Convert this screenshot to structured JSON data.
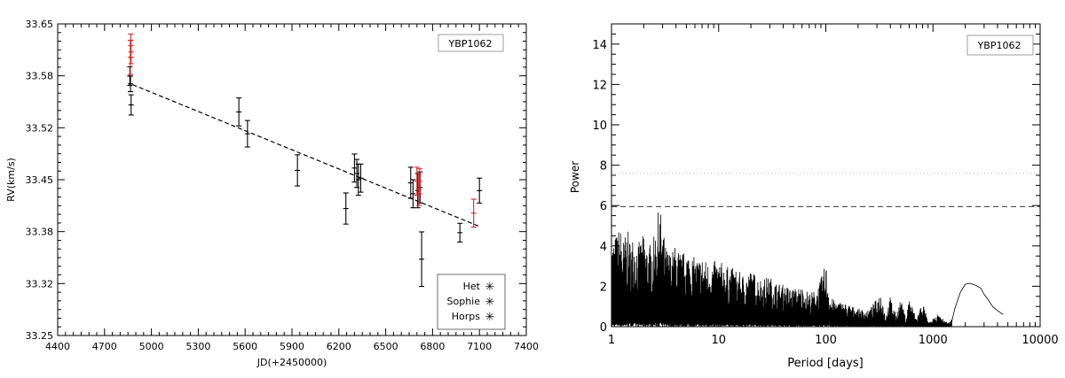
{
  "chart_data": [
    {
      "type": "scatter",
      "title": "",
      "xlabel": "JD(+2450000)",
      "ylabel": "RV(km/s)",
      "xlim": [
        4400,
        7400
      ],
      "ylim": [
        33.25,
        33.65
      ],
      "x_ticks": [
        "4400",
        "4700",
        "5000",
        "5300",
        "5600",
        "5900",
        "6200",
        "6500",
        "6800",
        "7100",
        "7400"
      ],
      "y_ticks": [
        "33.25",
        "33.32",
        "33.38",
        "33.45",
        "33.52",
        "33.58",
        "33.65"
      ],
      "grid": false,
      "annotation": "YBP1062",
      "annotation_position": "top-right",
      "legend_position": "bottom-right",
      "legend": [
        {
          "name": "Het",
          "color": "#33dd33"
        },
        {
          "name": "Sophie",
          "color": "#dd2222"
        },
        {
          "name": "Horps",
          "color": "#000000"
        }
      ],
      "trend": {
        "style": "dashed",
        "x": [
          4880,
          7100
        ],
        "y": [
          33.572,
          33.39
        ]
      },
      "series": [
        {
          "name": "Sophie",
          "color": "#dd2222",
          "points": [
            {
              "x": 4865,
              "y": 33.607,
              "err": 0.022
            },
            {
              "x": 4868,
              "y": 33.622,
              "err": 0.015
            },
            {
              "x": 4870,
              "y": 33.614,
              "err": 0.015
            },
            {
              "x": 6700,
              "y": 33.448,
              "err": 0.018
            },
            {
              "x": 6712,
              "y": 33.437,
              "err": 0.02
            },
            {
              "x": 6718,
              "y": 33.448,
              "err": 0.016
            },
            {
              "x": 7063,
              "y": 33.407,
              "err": 0.018
            }
          ]
        },
        {
          "name": "Horps",
          "color": "#000000",
          "points": [
            {
              "x": 4862,
              "y": 33.583,
              "err": 0.012
            },
            {
              "x": 4866,
              "y": 33.573,
              "err": 0.01
            },
            {
              "x": 4870,
              "y": 33.546,
              "err": 0.013
            },
            {
              "x": 5560,
              "y": 33.537,
              "err": 0.018
            },
            {
              "x": 5615,
              "y": 33.509,
              "err": 0.017
            },
            {
              "x": 5935,
              "y": 33.462,
              "err": 0.02
            },
            {
              "x": 6245,
              "y": 33.413,
              "err": 0.02
            },
            {
              "x": 6300,
              "y": 33.465,
              "err": 0.018
            },
            {
              "x": 6315,
              "y": 33.458,
              "err": 0.018
            },
            {
              "x": 6325,
              "y": 33.45,
              "err": 0.02
            },
            {
              "x": 6340,
              "y": 33.452,
              "err": 0.018
            },
            {
              "x": 6660,
              "y": 33.446,
              "err": 0.02
            },
            {
              "x": 6675,
              "y": 33.432,
              "err": 0.018
            },
            {
              "x": 6705,
              "y": 33.436,
              "err": 0.022
            },
            {
              "x": 6720,
              "y": 33.44,
              "err": 0.02
            },
            {
              "x": 6730,
              "y": 33.348,
              "err": 0.035
            },
            {
              "x": 6975,
              "y": 33.382,
              "err": 0.012
            },
            {
              "x": 7100,
              "y": 33.436,
              "err": 0.016
            }
          ]
        }
      ]
    },
    {
      "type": "line",
      "title": "",
      "xlabel": "Period [days]",
      "ylabel": "Power",
      "xscale": "log",
      "xlim": [
        1,
        10000
      ],
      "ylim": [
        0,
        15
      ],
      "x_ticks": [
        "1",
        "10",
        "100",
        "1000",
        "10000"
      ],
      "y_ticks": [
        "0",
        "2",
        "4",
        "6",
        "8",
        "10",
        "12",
        "14"
      ],
      "grid": false,
      "annotation": "YBP1062",
      "annotation_position": "top-right",
      "threshold_lines": [
        {
          "y": 5.95,
          "style": "dashed"
        },
        {
          "y": 7.6,
          "style": "dotted"
        }
      ],
      "series": [
        {
          "name": "",
          "x": [
            1.0,
            1.1,
            1.2,
            1.3,
            1.4,
            1.5,
            1.6,
            1.8,
            2.0,
            2.2,
            2.5,
            2.8,
            3.2,
            3.6,
            4.0,
            4.5,
            5.0,
            6.0,
            7.0,
            8.0,
            10,
            12,
            14,
            17,
            20,
            25,
            30,
            35,
            40,
            50,
            60,
            70,
            80,
            90,
            100,
            110,
            120,
            150,
            180,
            200,
            250,
            300,
            330,
            360,
            400,
            450,
            500,
            560,
            600,
            700,
            800,
            900,
            1000,
            1100,
            1200,
            1300,
            1400,
            1500,
            1600,
            1800,
            2000,
            2200,
            2500,
            2800,
            3000,
            3300,
            3600,
            4000,
            4500
          ],
          "y": [
            4.2,
            4.6,
            5.0,
            4.4,
            4.9,
            4.3,
            4.6,
            4.2,
            4.6,
            4.0,
            4.5,
            6.1,
            4.0,
            3.7,
            4.1,
            3.6,
            3.9,
            3.4,
            3.5,
            3.2,
            3.3,
            3.0,
            2.9,
            2.6,
            2.8,
            2.4,
            2.5,
            2.2,
            2.1,
            1.9,
            2.0,
            1.7,
            1.8,
            2.4,
            3.2,
            1.5,
            1.3,
            1.2,
            1.0,
            0.9,
            0.8,
            1.4,
            1.8,
            0.5,
            1.5,
            0.6,
            1.4,
            0.4,
            1.5,
            0.4,
            1.3,
            0.2,
            0.3,
            0.6,
            0.45,
            0.3,
            0.2,
            0.4,
            0.9,
            1.7,
            2.1,
            2.15,
            2.05,
            1.9,
            1.6,
            1.3,
            1.0,
            0.8,
            0.6
          ]
        }
      ]
    }
  ]
}
